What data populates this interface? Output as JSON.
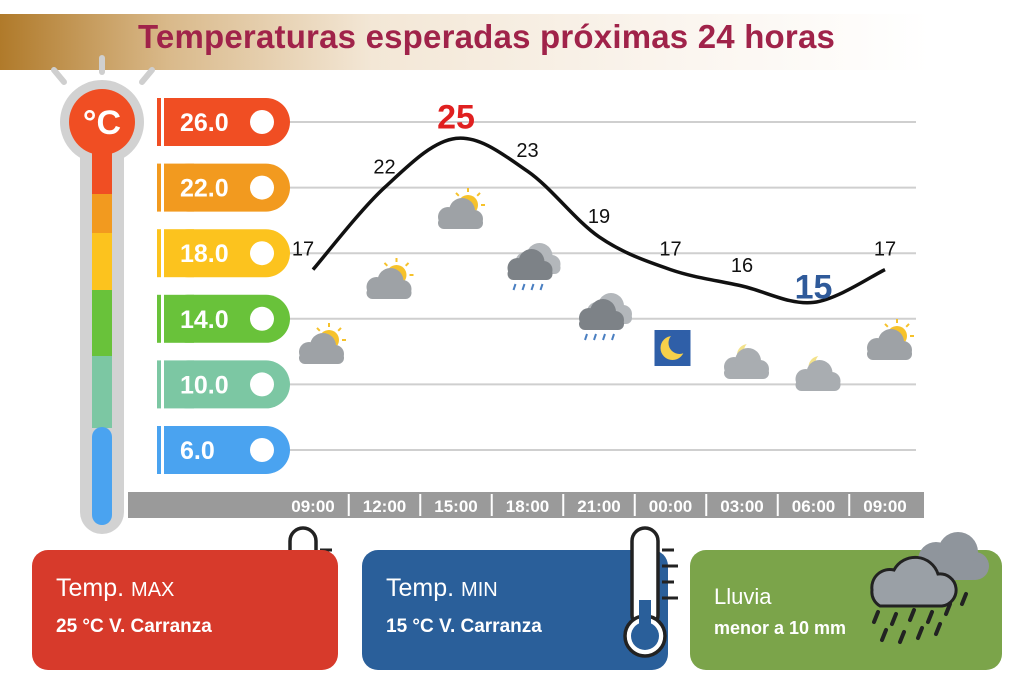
{
  "title": "Temperaturas esperadas próximas 24 horas",
  "thermometer_unit": "°C",
  "chart_data": {
    "type": "line",
    "title": "Temperaturas esperadas próximas 24 horas",
    "x": [
      "09:00",
      "12:00",
      "15:00",
      "18:00",
      "21:00",
      "00:00",
      "03:00",
      "06:00",
      "09:00"
    ],
    "values": [
      17,
      22,
      25,
      23,
      19,
      17,
      16,
      15,
      17
    ],
    "value_labels": [
      "17",
      "22",
      "25",
      "23",
      "19",
      "17",
      "16",
      "15",
      "17"
    ],
    "ytick_labels": [
      "26.0",
      "22.0",
      "18.0",
      "14.0",
      "10.0",
      "6.0"
    ],
    "ytick_values": [
      26,
      22,
      18,
      14,
      10,
      6
    ],
    "max_index": 2,
    "min_index": 7,
    "grid": true,
    "weather_icons": [
      "sun-cloud",
      "sun-cloud",
      "sun-cloud",
      "rain-cloud",
      "rain-cloud",
      "moon",
      "moon-cloud",
      "moon-cloud",
      "sun-cloud"
    ],
    "colors": {
      "line": "#111111",
      "max_label": "#e02020",
      "min_label": "#2f5a9a",
      "scale": [
        "#f04e23",
        "#f29a1f",
        "#fcc31e",
        "#69c23a",
        "#7cc7a3",
        "#4aa3f0"
      ]
    }
  },
  "cards": {
    "max": {
      "label_main": "Temp.",
      "label_small": "MAX",
      "value": "25 °C  V. Carranza",
      "color": "#d73a2b"
    },
    "min": {
      "label_main": "Temp.",
      "label_small": "MIN",
      "value": "15 °C  V. Carranza",
      "color": "#2a5f9a"
    },
    "rain": {
      "label": "Lluvia",
      "value": "menor a 10 mm",
      "color": "#7ba44a"
    }
  }
}
